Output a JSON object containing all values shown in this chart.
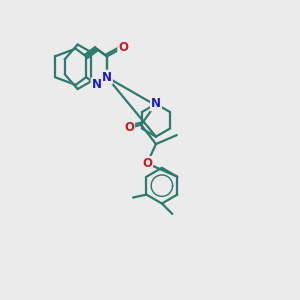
{
  "bg_color": "#ebebeb",
  "bond_color": "#2d7a6e",
  "N_color": "#1a1acc",
  "O_color": "#cc1a1a",
  "line_width": 1.6,
  "font_size_atom": 8.5,
  "fig_w": 3.0,
  "fig_h": 3.0,
  "dpi": 100,
  "xlim": [
    0,
    10
  ],
  "ylim": [
    0,
    10
  ]
}
